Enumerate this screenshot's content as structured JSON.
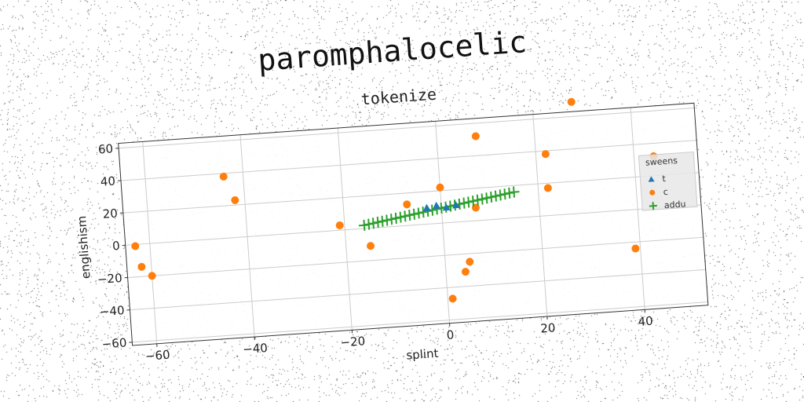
{
  "chart_data": {
    "type": "scatter",
    "suptitle": "paromphalocelic",
    "title": "tokenize",
    "xlabel": "splint",
    "ylabel": "englishism",
    "xlim": [
      -65,
      53
    ],
    "ylim": [
      -62,
      63
    ],
    "xticks": [
      -60,
      -40,
      -20,
      0,
      20,
      40
    ],
    "yticks": [
      -60,
      -40,
      -20,
      0,
      20,
      40,
      60
    ],
    "grid": true,
    "legend": {
      "title": "sweens",
      "placement": "right",
      "entries": [
        "t",
        "c",
        "addu"
      ]
    },
    "series": [
      {
        "name": "t",
        "marker": "triangle",
        "color": "#1f77b4",
        "points": [
          [
            -1,
            11
          ],
          [
            1,
            9.5
          ],
          [
            3,
            10.5
          ],
          [
            -3,
            10
          ]
        ]
      },
      {
        "name": "c",
        "marker": "circle",
        "color": "#ff7f0e",
        "points": [
          [
            -63,
            -1
          ],
          [
            -62,
            -14
          ],
          [
            -60,
            -20
          ],
          [
            -44,
            38
          ],
          [
            -42,
            23
          ],
          [
            -21,
            3
          ],
          [
            -15,
            -11
          ],
          [
            -7,
            13
          ],
          [
            0,
            22
          ],
          [
            1,
            -47
          ],
          [
            4,
            -31
          ],
          [
            5,
            -25
          ],
          [
            7,
            8
          ],
          [
            8,
            52
          ],
          [
            22,
            38
          ],
          [
            22,
            17
          ],
          [
            28,
            69
          ],
          [
            39,
            -24
          ],
          [
            44,
            32
          ]
        ]
      },
      {
        "name": "addu",
        "marker": "plus",
        "color": "#2ca02c",
        "line": {
          "x_start": -16,
          "x_end": 15,
          "y_start": 2,
          "y_end": 16,
          "count": 34
        }
      }
    ]
  }
}
